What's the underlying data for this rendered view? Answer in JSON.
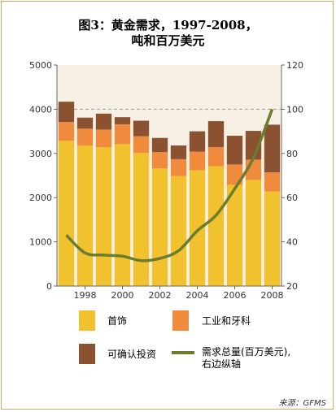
{
  "title_line1": "图3：黄金需求，1997-2008，",
  "title_line2": "吨和百万美元",
  "source": "来源：GFMS",
  "legend": [
    {
      "label": "首饰",
      "color": "#f2c12e",
      "kind": "box"
    },
    {
      "label": "工业和牙科",
      "color": "#f08a3c",
      "kind": "box"
    },
    {
      "label": "可确认投资",
      "color": "#8a5230",
      "kind": "box"
    },
    {
      "label_line1": "需求总量(百万美元),",
      "label_line2": "右边纵轴",
      "color": "#6b7d2e",
      "kind": "line"
    }
  ],
  "chart_data": {
    "type": "bar",
    "stacked": true,
    "x": [
      1997,
      1998,
      1999,
      2000,
      2001,
      2002,
      2003,
      2004,
      2005,
      2006,
      2007,
      2008
    ],
    "xticks": [
      "1998",
      "2000",
      "2002",
      "2004",
      "2006",
      "2008"
    ],
    "ylim_left": [
      0,
      5000
    ],
    "yticks_left": [
      "0",
      "1000",
      "2000",
      "3000",
      "4000",
      "5000"
    ],
    "ylim_right": [
      20,
      120
    ],
    "yticks_right": [
      "20",
      "40",
      "60",
      "80",
      "100",
      "120"
    ],
    "reference_line_right": 100,
    "series": [
      {
        "name": "首饰",
        "color": "#f2c12e",
        "values": [
          3290,
          3180,
          3140,
          3210,
          3010,
          2660,
          2490,
          2620,
          2710,
          2290,
          2400,
          2140
        ]
      },
      {
        "name": "工业和牙科",
        "color": "#f08a3c",
        "values": [
          420,
          380,
          400,
          450,
          380,
          370,
          380,
          420,
          430,
          460,
          460,
          430
        ]
      },
      {
        "name": "可确认投资",
        "color": "#8a5230",
        "values": [
          460,
          250,
          360,
          160,
          350,
          320,
          310,
          460,
          590,
          650,
          650,
          1080
        ]
      }
    ],
    "line_series": {
      "name": "需求总量(百万美元),右边纵轴",
      "axis": "right",
      "color": "#6b7d2e",
      "values": [
        43,
        35,
        34,
        33.5,
        31.5,
        32.5,
        36,
        45,
        52,
        64,
        78,
        100
      ]
    }
  }
}
